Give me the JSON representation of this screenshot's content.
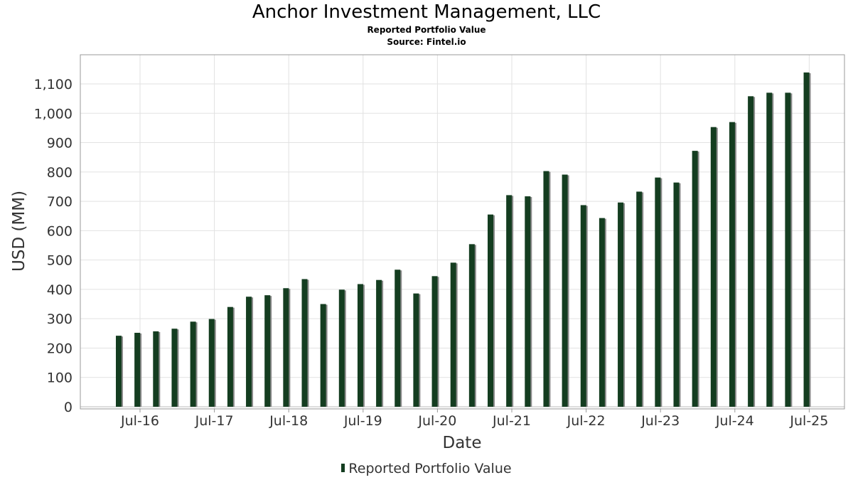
{
  "chart_data": {
    "type": "bar",
    "title": "Anchor Investment Management, LLC",
    "subtitle": "Reported Portfolio Value",
    "source": "Source: Fintel.io",
    "xlabel": "Date",
    "ylabel": "USD (MM)",
    "ylim": [
      0,
      1200
    ],
    "yticks": [
      "0",
      "100",
      "200",
      "300",
      "400",
      "500",
      "600",
      "700",
      "800",
      "900",
      "1,000",
      "1,100"
    ],
    "xticks": [
      "Jul-16",
      "Jul-17",
      "Jul-18",
      "Jul-19",
      "Jul-20",
      "Jul-21",
      "Jul-22",
      "Jul-23",
      "Jul-24",
      "Jul-25"
    ],
    "grid": true,
    "legend_position": "bottom",
    "series": [
      {
        "name": "Reported Portfolio Value",
        "color": "#143d20",
        "values": [
          242,
          252,
          257,
          266,
          290,
          299,
          340,
          375,
          380,
          404,
          435,
          350,
          399,
          418,
          432,
          467,
          386,
          445,
          491,
          554,
          655,
          721,
          717,
          803,
          791,
          687,
          643,
          696,
          733,
          781,
          764,
          872,
          953,
          970,
          1058,
          1070,
          1070,
          1139
        ]
      }
    ]
  }
}
